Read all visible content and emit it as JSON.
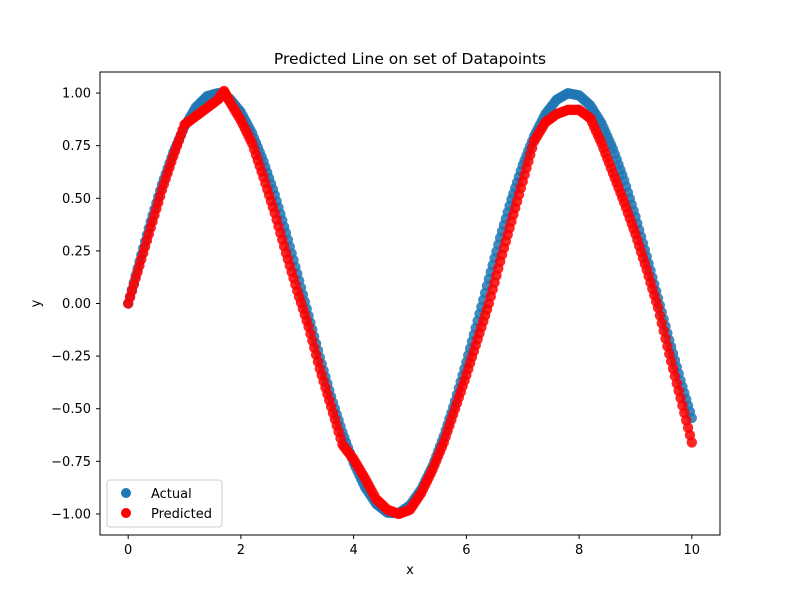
{
  "chart_data": {
    "type": "scatter",
    "title": "Predicted Line on set of Datapoints",
    "xlabel": "x",
    "ylabel": "y",
    "xlim": [
      -0.5,
      10.5
    ],
    "ylim": [
      -1.1,
      1.1
    ],
    "xticks": [
      0,
      2,
      4,
      6,
      8,
      10
    ],
    "yticks": [
      -1.0,
      -0.75,
      -0.5,
      -0.25,
      0.0,
      0.25,
      0.5,
      0.75,
      1.0
    ],
    "ytick_labels": [
      "−1.00",
      "−0.75",
      "−0.50",
      "−0.25",
      "0.00",
      "0.25",
      "0.50",
      "0.75",
      "1.00"
    ],
    "xtick_labels": [
      "0",
      "2",
      "4",
      "6",
      "8",
      "10"
    ],
    "legend_position": "lower-left",
    "grid": false,
    "series": [
      {
        "name": "Actual",
        "color": "#1f77b4",
        "x": [
          0.0,
          0.2,
          0.4,
          0.6,
          0.8,
          1.0,
          1.2,
          1.4,
          1.6,
          1.8,
          2.0,
          2.2,
          2.4,
          2.6,
          2.8,
          3.0,
          3.2,
          3.4,
          3.6,
          3.8,
          4.0,
          4.2,
          4.4,
          4.6,
          4.8,
          5.0,
          5.2,
          5.4,
          5.6,
          5.8,
          6.0,
          6.2,
          6.4,
          6.6,
          6.8,
          7.0,
          7.2,
          7.4,
          7.6,
          7.8,
          8.0,
          8.2,
          8.4,
          8.6,
          8.8,
          9.0,
          9.2,
          9.4,
          9.6,
          9.8,
          10.0
        ],
        "y": [
          0.0,
          0.199,
          0.389,
          0.565,
          0.717,
          0.841,
          0.932,
          0.985,
          1.0,
          0.974,
          0.909,
          0.808,
          0.675,
          0.516,
          0.335,
          0.141,
          -0.058,
          -0.256,
          -0.443,
          -0.612,
          -0.757,
          -0.872,
          -0.952,
          -0.994,
          -0.996,
          -0.959,
          -0.883,
          -0.773,
          -0.631,
          -0.465,
          -0.279,
          -0.083,
          0.117,
          0.312,
          0.494,
          0.657,
          0.794,
          0.899,
          0.968,
          0.999,
          0.989,
          0.941,
          0.855,
          0.734,
          0.585,
          0.412,
          0.223,
          0.025,
          -0.174,
          -0.366,
          -0.544
        ]
      },
      {
        "name": "Predicted",
        "color": "#ff0000",
        "x": [
          0.0,
          0.2,
          0.4,
          0.6,
          0.8,
          1.0,
          1.2,
          1.4,
          1.6,
          1.7,
          1.8,
          2.0,
          2.2,
          2.4,
          2.6,
          2.8,
          3.0,
          3.2,
          3.4,
          3.6,
          3.8,
          4.0,
          4.2,
          4.4,
          4.6,
          4.8,
          5.0,
          5.2,
          5.4,
          5.6,
          5.8,
          6.0,
          6.2,
          6.4,
          6.6,
          6.8,
          7.0,
          7.2,
          7.4,
          7.6,
          7.8,
          8.0,
          8.2,
          8.4,
          8.6,
          8.8,
          9.0,
          9.2,
          9.4,
          9.6,
          9.8,
          10.0
        ],
        "y": [
          0.0,
          0.18,
          0.36,
          0.54,
          0.7,
          0.85,
          0.89,
          0.93,
          0.97,
          1.01,
          0.96,
          0.87,
          0.76,
          0.6,
          0.43,
          0.24,
          0.06,
          -0.11,
          -0.31,
          -0.49,
          -0.67,
          -0.74,
          -0.83,
          -0.93,
          -0.98,
          -1.0,
          -0.98,
          -0.9,
          -0.79,
          -0.66,
          -0.5,
          -0.34,
          -0.17,
          0.0,
          0.2,
          0.39,
          0.58,
          0.77,
          0.86,
          0.9,
          0.92,
          0.92,
          0.88,
          0.76,
          0.62,
          0.48,
          0.33,
          0.16,
          -0.02,
          -0.24,
          -0.45,
          -0.66
        ]
      }
    ]
  }
}
